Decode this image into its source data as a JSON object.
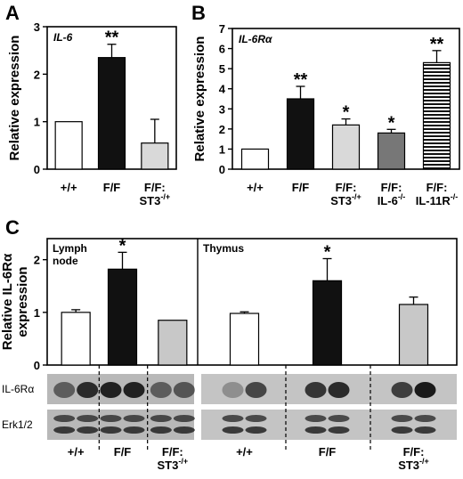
{
  "panels": {
    "a": {
      "letter": "A"
    },
    "b": {
      "letter": "B"
    },
    "c": {
      "letter": "C"
    }
  },
  "chart_data": [
    {
      "id": "A",
      "type": "bar",
      "annotation": "IL-6",
      "ylabel": "Relative expression",
      "ylim": [
        0,
        3
      ],
      "yticks": [
        0,
        1,
        2,
        3
      ],
      "categories": [
        [
          "+/+"
        ],
        [
          "F/F"
        ],
        [
          "F/F:",
          "ST3",
          "-/+"
        ]
      ],
      "values": [
        1.0,
        2.35,
        0.55
      ],
      "errors": [
        0,
        0.28,
        0.5
      ],
      "significance": [
        "",
        "**",
        ""
      ],
      "colors": [
        "#ffffff",
        "#111111",
        "#d9d9d9"
      ]
    },
    {
      "id": "B",
      "type": "bar",
      "annotation": "IL-6Rα",
      "ylabel": "Relative expression",
      "ylim": [
        0,
        7
      ],
      "yticks": [
        0,
        1,
        2,
        3,
        4,
        5,
        6,
        7
      ],
      "categories": [
        [
          "+/+"
        ],
        [
          "F/F"
        ],
        [
          "F/F:",
          "ST3",
          "-/+"
        ],
        [
          "F/F:",
          "IL-6",
          "-/-"
        ],
        [
          "F/F:",
          "IL-11R",
          "-/-"
        ]
      ],
      "values": [
        1.0,
        3.5,
        2.2,
        1.8,
        5.3
      ],
      "errors": [
        0,
        0.62,
        0.3,
        0.18,
        0.6
      ],
      "significance": [
        "",
        "**",
        "*",
        "*",
        "**"
      ],
      "colors": [
        "#ffffff",
        "#111111",
        "#d9d9d9",
        "#777777",
        "stripes"
      ]
    },
    {
      "id": "C",
      "type": "bar",
      "ylabel": [
        "Relative IL-6Rα",
        "expression"
      ],
      "ylim": [
        0,
        2.4
      ],
      "yticks": [
        0,
        1,
        2
      ],
      "groups": [
        {
          "name": [
            "Lymph",
            "node"
          ],
          "values": [
            1.0,
            1.82,
            0.85
          ],
          "errors": [
            0.05,
            0.32,
            0
          ],
          "significance": [
            "",
            "*",
            ""
          ]
        },
        {
          "name": [
            "Thymus"
          ],
          "values": [
            0.98,
            1.6,
            1.15
          ],
          "errors": [
            0.03,
            0.42,
            0.14
          ],
          "significance": [
            "",
            "*",
            ""
          ]
        }
      ],
      "colors": [
        "#ffffff",
        "#111111",
        "#c8c8c8"
      ],
      "blot_labels": [
        "IL-6Rα",
        "Erk1/2"
      ],
      "categories": [
        [
          "+/+"
        ],
        [
          "F/F"
        ],
        [
          "F/F:",
          "ST3",
          "-/+"
        ],
        [
          "+/+"
        ],
        [
          "F/F"
        ],
        [
          "F/F:",
          "ST3",
          "-/+"
        ]
      ]
    }
  ]
}
